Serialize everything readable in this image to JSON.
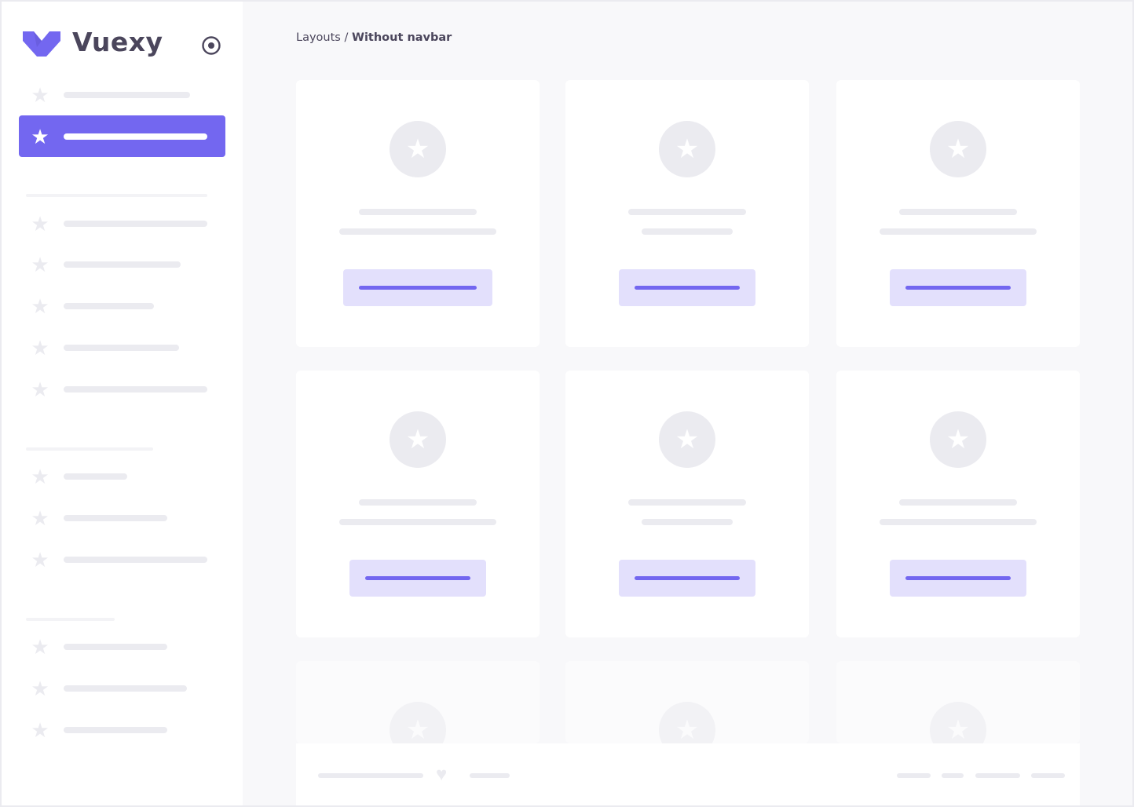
{
  "brand": {
    "name": "Vuexy",
    "color": "#7367f0"
  },
  "breadcrumb": {
    "parent": "Layouts",
    "separator": " / ",
    "current": "Without navbar"
  },
  "icons": {
    "logo": "vuexy-logo-icon",
    "toggle": "radio-circle-icon",
    "nav": "star-icon",
    "card": "star-icon",
    "footer": "heart-icon"
  },
  "colors": {
    "accent": "#7367f0",
    "accent_light": "#e3e0fc",
    "placeholder": "#ebebf0",
    "background": "#f8f8fa"
  }
}
